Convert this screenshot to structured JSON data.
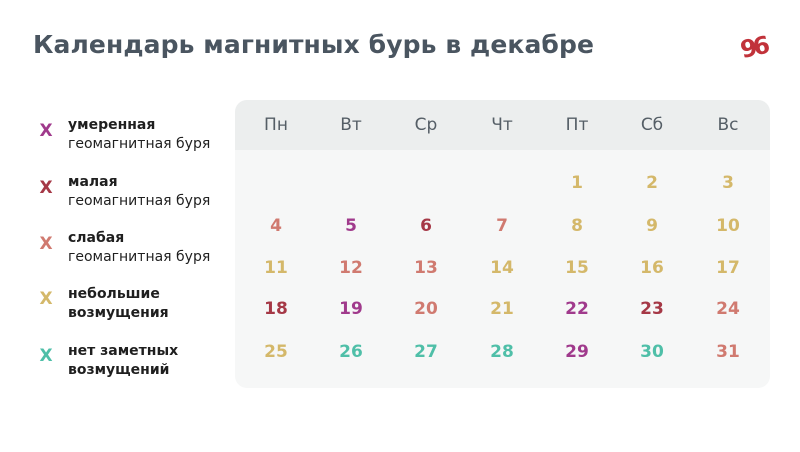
{
  "title": "Календарь магнитных бурь в декабре",
  "logo": {
    "name": "96",
    "color": "#c1323a"
  },
  "legend": [
    {
      "mark": "X",
      "line1": "умеренная",
      "line2": "геомагнитная буря",
      "color": "#a03a8c",
      "style": "semi"
    },
    {
      "mark": "X",
      "line1": "малая",
      "line2": "геомагнитная буря",
      "color": "#a53846",
      "style": "semi"
    },
    {
      "mark": "X",
      "line1": "слабая",
      "line2": "геомагнитная буря",
      "color": "#d07a70",
      "style": "semi"
    },
    {
      "mark": "X",
      "line1": "небольшие",
      "line2": "возмущения",
      "color": "#d4b86a",
      "style": "bold"
    },
    {
      "mark": "X",
      "line1": "нет заметных",
      "line2": "возмущений",
      "color": "#4fbfa8",
      "style": "bold"
    }
  ],
  "colors": {
    "moderate": "#a03a8c",
    "minor": "#a53846",
    "weak": "#d07a70",
    "small": "#d4b86a",
    "none": "#4fbfa8"
  },
  "weekdays": [
    "Пн",
    "Вт",
    "Ср",
    "Чт",
    "Пт",
    "Сб",
    "Вс"
  ],
  "days": [
    {
      "n": "1",
      "level": "small"
    },
    {
      "n": "2",
      "level": "small"
    },
    {
      "n": "3",
      "level": "small"
    },
    {
      "n": "4",
      "level": "weak"
    },
    {
      "n": "5",
      "level": "moderate"
    },
    {
      "n": "6",
      "level": "minor"
    },
    {
      "n": "7",
      "level": "weak"
    },
    {
      "n": "8",
      "level": "small"
    },
    {
      "n": "9",
      "level": "small"
    },
    {
      "n": "10",
      "level": "small"
    },
    {
      "n": "11",
      "level": "small"
    },
    {
      "n": "12",
      "level": "weak"
    },
    {
      "n": "13",
      "level": "weak"
    },
    {
      "n": "14",
      "level": "small"
    },
    {
      "n": "15",
      "level": "small"
    },
    {
      "n": "16",
      "level": "small"
    },
    {
      "n": "17",
      "level": "small"
    },
    {
      "n": "18",
      "level": "minor"
    },
    {
      "n": "19",
      "level": "moderate"
    },
    {
      "n": "20",
      "level": "weak"
    },
    {
      "n": "21",
      "level": "small"
    },
    {
      "n": "22",
      "level": "moderate"
    },
    {
      "n": "23",
      "level": "minor"
    },
    {
      "n": "24",
      "level": "weak"
    },
    {
      "n": "25",
      "level": "small"
    },
    {
      "n": "26",
      "level": "none"
    },
    {
      "n": "27",
      "level": "none"
    },
    {
      "n": "28",
      "level": "none"
    },
    {
      "n": "29",
      "level": "moderate"
    },
    {
      "n": "30",
      "level": "none"
    },
    {
      "n": "31",
      "level": "weak"
    }
  ],
  "first_weekday_index": 4
}
